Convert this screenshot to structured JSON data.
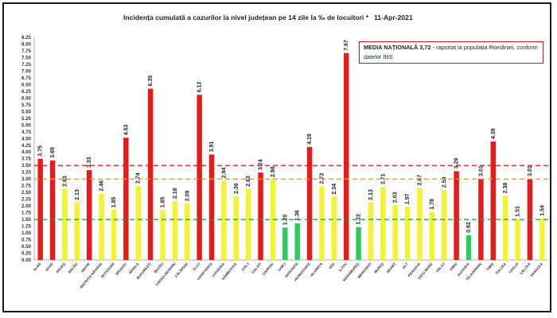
{
  "chart_data": {
    "type": "bar",
    "title": "Incidența cumulată a cazurilor la nivel județean pe 14 zile la ‰ de locuitori *",
    "date": "11-Apr-2021",
    "annotation": {
      "label": "MEDIA NAȚIONALĂ",
      "value": "3,72",
      "text": " - raportat la populația României, conform datelor INS"
    },
    "ylim": [
      0,
      8.25
    ],
    "y_step": 0.25,
    "grid": false,
    "categories": [
      "ALBA",
      "ARAD",
      "ARGEȘ",
      "BACĂU",
      "BIHOR",
      "BISTRIȚA-NĂSĂUD",
      "BOTOȘANI",
      "BRAȘOV",
      "BRĂILA",
      "BUCUREȘTI",
      "BUZĂU",
      "CARAȘ-SEVERIN",
      "CĂLĂRAȘI",
      "CLUJ",
      "CONSTANȚA",
      "COVASNA",
      "DÂMBOVIȚA",
      "DOLJ",
      "GALAȚI",
      "GIURGIU",
      "GORJ",
      "HARGHITA",
      "HUNEDOARA",
      "IALOMIȚA",
      "IAȘI",
      "ILFOV",
      "MARAMUREȘ",
      "MEHEDINȚI",
      "MUREȘ",
      "NEAMȚ",
      "OLT",
      "PRAHOVA",
      "SATU-MARE",
      "SĂLAJ",
      "SIBIU",
      "SUCEAVA",
      "TELEORMAN",
      "TIMIȘ",
      "TULCEA",
      "VASLUI",
      "VÂLCEA",
      "VRANCEA"
    ],
    "values": [
      3.75,
      3.69,
      2.63,
      2.13,
      3.33,
      2.46,
      1.85,
      4.53,
      2.74,
      6.35,
      1.85,
      2.18,
      2.09,
      6.12,
      3.91,
      2.94,
      2.36,
      2.63,
      3.24,
      2.98,
      1.2,
      1.36,
      4.19,
      2.73,
      2.34,
      7.67,
      1.22,
      2.13,
      2.71,
      2.03,
      1.97,
      2.67,
      1.78,
      2.59,
      3.29,
      0.92,
      3.01,
      4.39,
      2.38,
      1.51,
      3.01,
      1.54
    ],
    "value_labels": [
      "3.75",
      "3.69",
      "2.63",
      "2.13",
      "3.33",
      "2.46",
      "1.85",
      "4.53",
      "2.74",
      "6.35",
      "1.85",
      "2.18",
      "2.09",
      "6.12",
      "3.91",
      "2.94",
      "2.36",
      "2.63",
      "3.24",
      "2.98",
      "1.20",
      "1.36",
      "4.19",
      "2.73",
      "2.34",
      "7.67",
      "1.22",
      "2.13",
      "2.71",
      "2.03",
      "1.97",
      "2.67",
      "1.78",
      "2.59",
      "3.29",
      "0.92",
      "3.01",
      "4.39",
      "2.38",
      "1.51",
      "3.01",
      "1.54"
    ],
    "color_thresholds": [
      {
        "max": 1.5,
        "color": "#2ecc5a"
      },
      {
        "max": 3.0,
        "color": "#f3f330"
      },
      {
        "max": 99,
        "color": "#e81a1a"
      }
    ],
    "reference_lines": [
      {
        "y": 3.5,
        "color": "#e02020"
      },
      {
        "y": 3.0,
        "color": "#f0a000"
      },
      {
        "y": 1.5,
        "color": "#1a9a3a"
      }
    ]
  }
}
